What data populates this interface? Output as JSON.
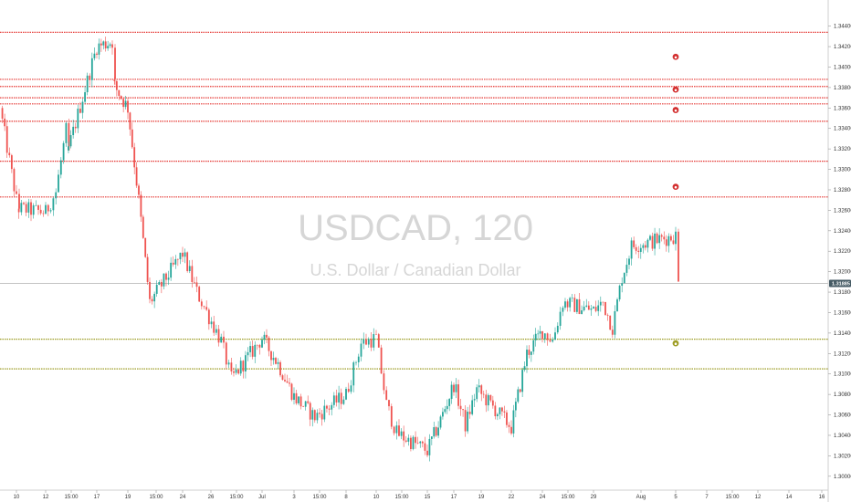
{
  "watermark": {
    "symbol": "USDCAD, 120",
    "description": "U.S. Dollar / Canadian Dollar"
  },
  "current_price_label": "1.31885",
  "colors": {
    "up": "#26a69a",
    "down": "#ef5350",
    "resistance": "#e53935",
    "support": "#9e9d24",
    "marker_red": "#d32f2f",
    "marker_olive": "#9e9d24",
    "price_tag": "#455a64",
    "axis_text": "#333333",
    "watermark": "#d6d6d6"
  },
  "chart_data": {
    "type": "candlestick",
    "title": "USDCAD, 120",
    "subtitle": "U.S. Dollar / Canadian Dollar",
    "ylim": [
      1.299,
      1.3462
    ],
    "y_ticks": [
      "1.34400",
      "1.34200",
      "1.34000",
      "1.33800",
      "1.33600",
      "1.33400",
      "1.33200",
      "1.33000",
      "1.32800",
      "1.32600",
      "1.32400",
      "1.32200",
      "1.32000",
      "1.31800",
      "1.31600",
      "1.31400",
      "1.31200",
      "1.31000",
      "1.30800",
      "1.30600",
      "1.30400",
      "1.30200",
      "1.30000"
    ],
    "x_ticks": [
      "10",
      "12",
      "15:00",
      "17",
      "19",
      "15:00",
      "24",
      "26",
      "15:00",
      "Jul",
      "3",
      "15:00",
      "8",
      "10",
      "15:00",
      "15",
      "17",
      "19",
      "22",
      "24",
      "15:00",
      "29",
      "Aug",
      "5",
      "7",
      "15:00",
      "12",
      "14",
      "16"
    ],
    "horizontal_lines": {
      "resistance": [
        1.3434,
        1.3388,
        1.3381,
        1.337,
        1.3364,
        1.3347,
        1.3308,
        1.3273
      ],
      "support": [
        1.3134,
        1.3105
      ]
    },
    "markers": [
      {
        "date": "Aug 5",
        "price": 1.341,
        "color": "red"
      },
      {
        "date": "Aug 5",
        "price": 1.3378,
        "color": "red"
      },
      {
        "date": "Aug 5",
        "price": 1.3358,
        "color": "red"
      },
      {
        "date": "Aug 5",
        "price": 1.3283,
        "color": "red"
      },
      {
        "date": "Aug 5",
        "price": 1.313,
        "color": "olive"
      }
    ],
    "last_price": 1.31885,
    "price_path": [
      {
        "date": "Jun 7",
        "price": 1.336
      },
      {
        "date": "Jun 10",
        "price": 1.327
      },
      {
        "date": "Jun 10",
        "price": 1.3262
      },
      {
        "date": "Jun 12",
        "price": 1.3258
      },
      {
        "date": "Jun 13",
        "price": 1.3278
      },
      {
        "date": "Jun 14",
        "price": 1.3338
      },
      {
        "date": "Jun 14",
        "price": 1.3312
      },
      {
        "date": "Jun 17",
        "price": 1.342
      },
      {
        "date": "Jun 18",
        "price": 1.3425
      },
      {
        "date": "Jun 18",
        "price": 1.3385
      },
      {
        "date": "Jun 19",
        "price": 1.336
      },
      {
        "date": "Jun 20",
        "price": 1.327
      },
      {
        "date": "Jun 21",
        "price": 1.317
      },
      {
        "date": "Jun 24",
        "price": 1.3218
      },
      {
        "date": "Jun 25",
        "price": 1.318
      },
      {
        "date": "Jun 27",
        "price": 1.3132
      },
      {
        "date": "Jun 28",
        "price": 1.3095
      },
      {
        "date": "Jul 1",
        "price": 1.3135
      },
      {
        "date": "Jul 2",
        "price": 1.311
      },
      {
        "date": "Jul 3",
        "price": 1.3078
      },
      {
        "date": "Jul 5",
        "price": 1.3058
      },
      {
        "date": "Jul 8",
        "price": 1.308
      },
      {
        "date": "Jul 9",
        "price": 1.313
      },
      {
        "date": "Jul 10",
        "price": 1.3135
      },
      {
        "date": "Jul 11",
        "price": 1.307
      },
      {
        "date": "Jul 12",
        "price": 1.3042
      },
      {
        "date": "Jul 15",
        "price": 1.3025
      },
      {
        "date": "Jul 16",
        "price": 1.3055
      },
      {
        "date": "Jul 17",
        "price": 1.309
      },
      {
        "date": "Jul 18",
        "price": 1.305
      },
      {
        "date": "Jul 19",
        "price": 1.3085
      },
      {
        "date": "Jul 22",
        "price": 1.3048
      },
      {
        "date": "Jul 23",
        "price": 1.312
      },
      {
        "date": "Jul 24",
        "price": 1.3142
      },
      {
        "date": "Jul 25",
        "price": 1.3133
      },
      {
        "date": "Jul 26",
        "price": 1.317
      },
      {
        "date": "Jul 29",
        "price": 1.3162
      },
      {
        "date": "Jul 30",
        "price": 1.317
      },
      {
        "date": "Jul 31",
        "price": 1.3145
      },
      {
        "date": "Aug 1",
        "price": 1.3195
      },
      {
        "date": "Aug 2",
        "price": 1.3225
      },
      {
        "date": "Aug 5",
        "price": 1.3235
      },
      {
        "date": "Aug 5",
        "price": 1.31885
      }
    ]
  }
}
